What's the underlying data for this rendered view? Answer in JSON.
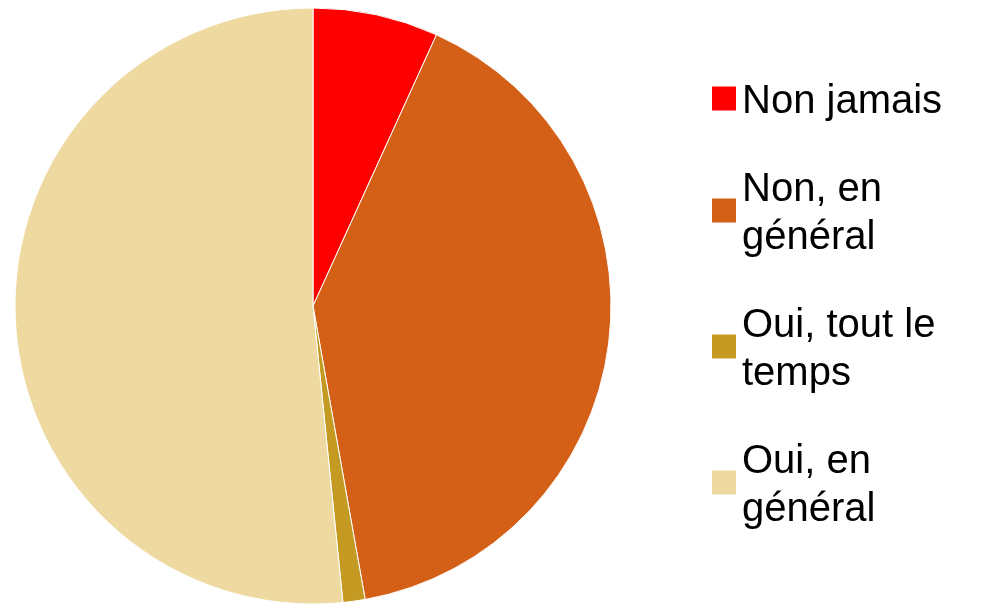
{
  "chart_data": {
    "type": "pie",
    "categories": [
      "Non jamais",
      "Non, en général",
      "Oui, tout le temps",
      "Oui, en général"
    ],
    "values": [
      6.8,
      40.4,
      1.2,
      51.6
    ],
    "colors": [
      "#ff0000",
      "#d45f17",
      "#c49a22",
      "#eed9a0"
    ],
    "legend": "right"
  }
}
